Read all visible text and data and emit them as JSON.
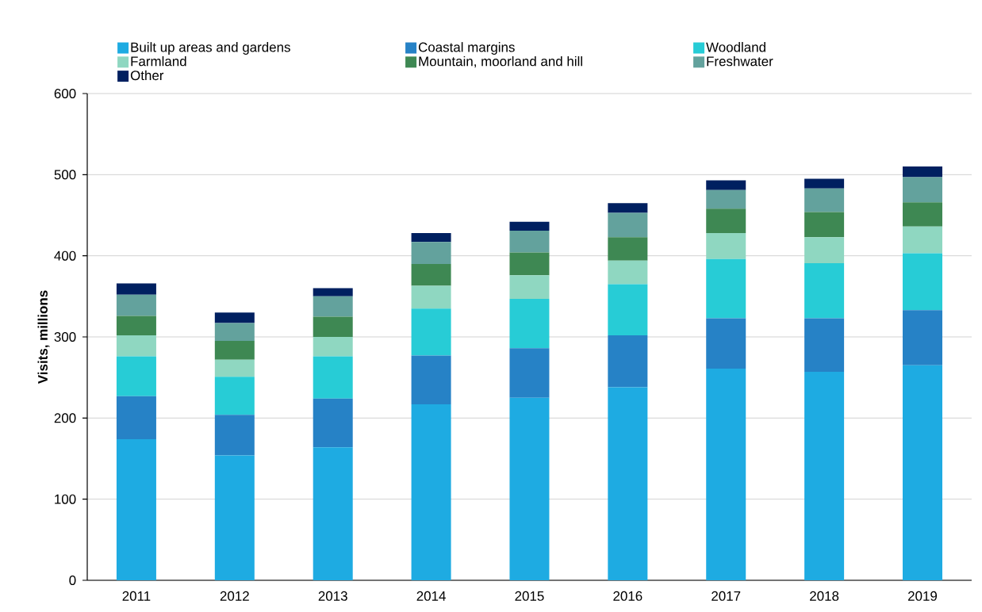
{
  "chart_data": {
    "type": "bar",
    "stacked": true,
    "ylabel": "Visits, millions",
    "categories": [
      "2011",
      "2012",
      "2013",
      "2014",
      "2015",
      "2016",
      "2017",
      "2018",
      "2019"
    ],
    "series": [
      {
        "name": "Built up areas and gardens",
        "color": "#1eabe2",
        "values": [
          174,
          154,
          164,
          217,
          225,
          238,
          261,
          257,
          265
        ]
      },
      {
        "name": "Coastal margins",
        "color": "#2682c6",
        "values": [
          53,
          50,
          60,
          60,
          61,
          64,
          62,
          66,
          68
        ]
      },
      {
        "name": "Woodland",
        "color": "#27ccd6",
        "values": [
          49,
          47,
          52,
          58,
          61,
          63,
          73,
          68,
          70
        ]
      },
      {
        "name": "Farmland",
        "color": "#8fd7c1",
        "values": [
          26,
          21,
          24,
          28,
          29,
          29,
          32,
          32,
          33
        ]
      },
      {
        "name": "Mountain, moorland and hill",
        "color": "#3e8853",
        "values": [
          24,
          23,
          25,
          27,
          28,
          29,
          30,
          31,
          30
        ]
      },
      {
        "name": "Freshwater",
        "color": "#63a29d",
        "values": [
          26,
          22,
          25,
          27,
          27,
          30,
          23,
          29,
          31
        ]
      },
      {
        "name": "Other",
        "color": "#002060",
        "values": [
          14,
          13,
          10,
          11,
          11,
          12,
          12,
          12,
          13
        ]
      }
    ],
    "ylim": [
      0,
      600
    ],
    "yticks": [
      0,
      100,
      200,
      300,
      400,
      500,
      600
    ],
    "grid": "y",
    "legend": "top"
  }
}
